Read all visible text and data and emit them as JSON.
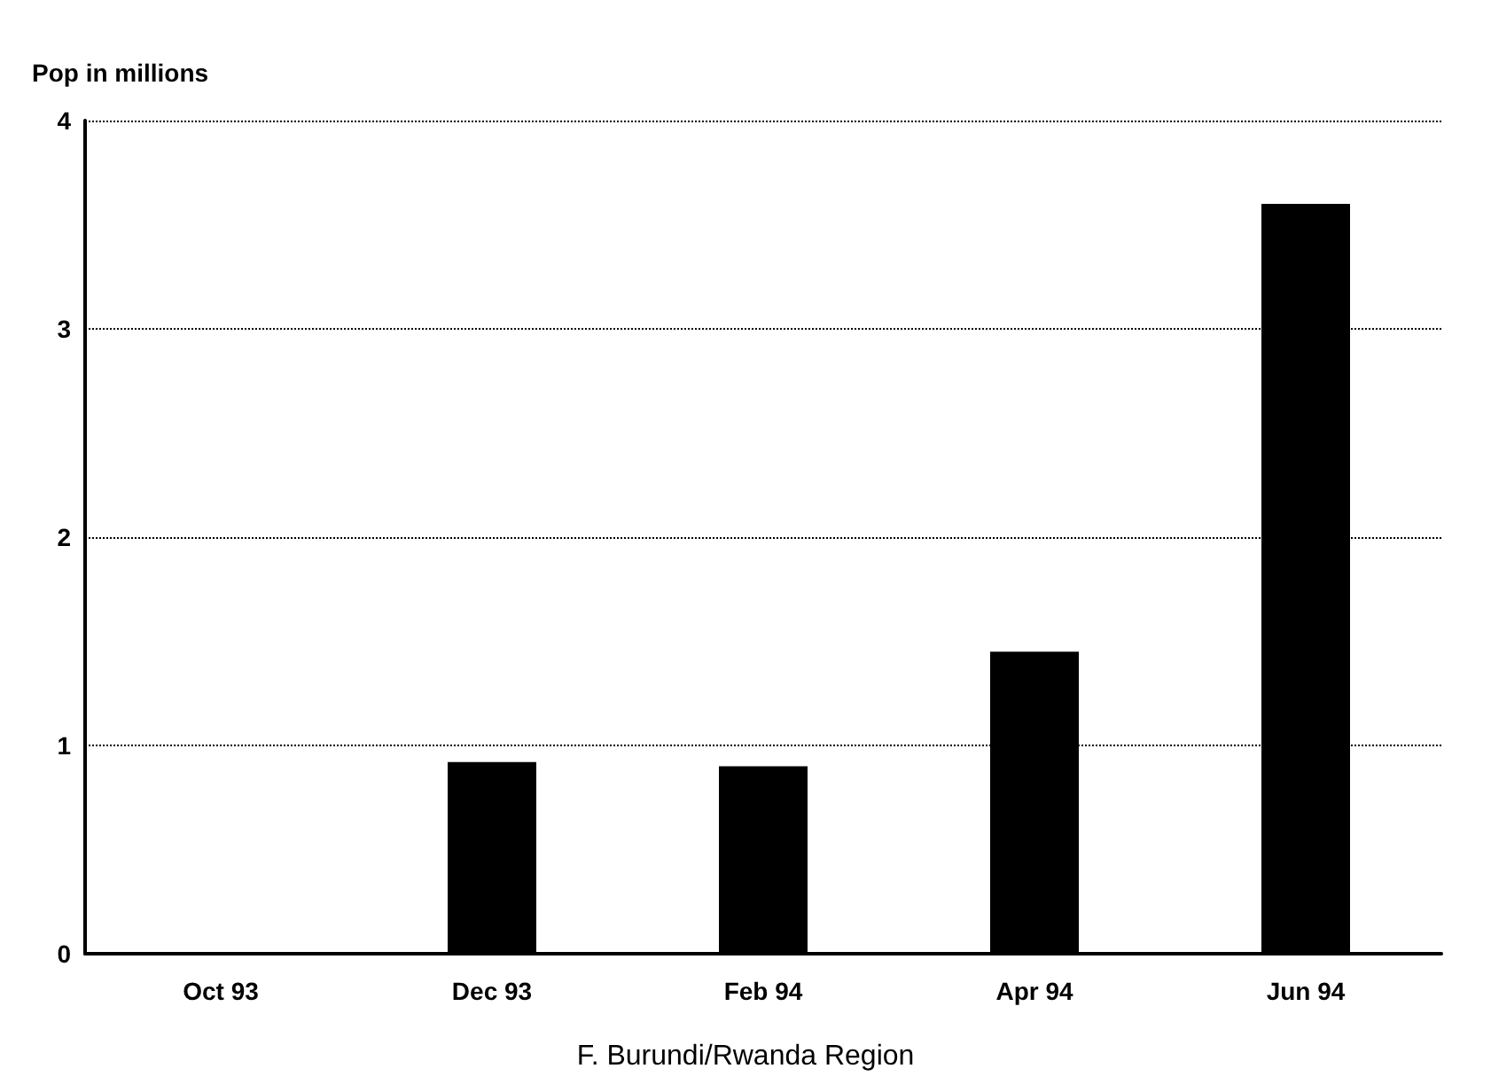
{
  "chart_data": {
    "type": "bar",
    "ylabel": "Pop in millions",
    "categories": [
      "Oct 93",
      "Dec 93",
      "Feb 94",
      "Apr 94",
      "Jun 94"
    ],
    "values": [
      0,
      0.92,
      0.9,
      1.45,
      3.6
    ],
    "color": "#000000",
    "ylim": [
      0,
      4
    ],
    "yticks": [
      0,
      1,
      2,
      3,
      4
    ],
    "grid": "y",
    "annotations": [
      "F. Burundi/Rwanda Region"
    ]
  }
}
